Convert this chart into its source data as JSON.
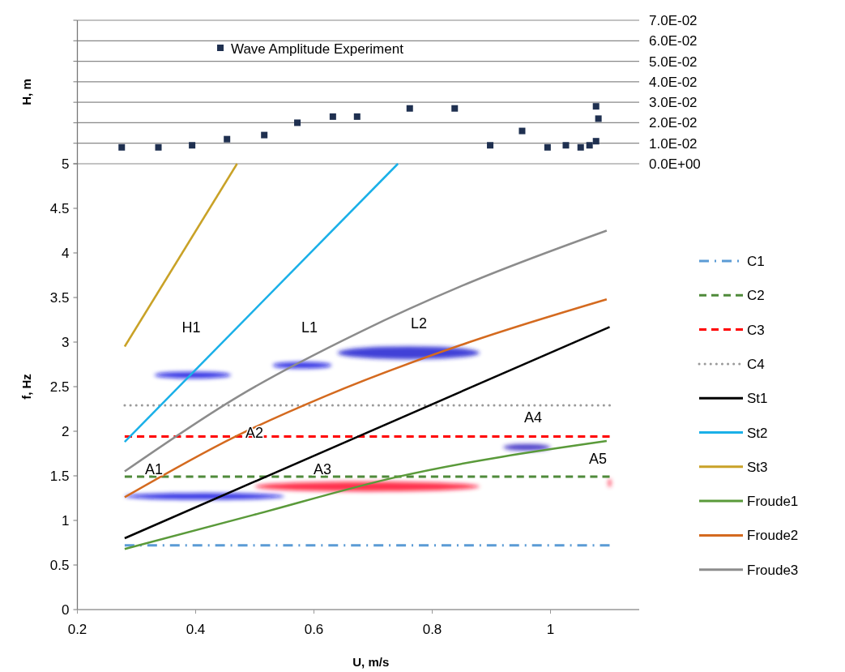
{
  "chart_data": [
    {
      "type": "scatter",
      "ylabel": "H, m",
      "xlim": [
        0.2,
        1.15
      ],
      "ylim": [
        0,
        0.07
      ],
      "yticks": [
        {
          "value": 0,
          "label": "0.0E+00"
        },
        {
          "value": 0.01,
          "label": "1.0E-02"
        },
        {
          "value": 0.02,
          "label": "2.0E-02"
        },
        {
          "value": 0.03,
          "label": "3.0E-02"
        },
        {
          "value": 0.04,
          "label": "4.0E-02"
        },
        {
          "value": 0.05,
          "label": "5.0E-02"
        },
        {
          "value": 0.06,
          "label": "6.0E-02"
        },
        {
          "value": 0.07,
          "label": "7.0E-02"
        }
      ],
      "tick_labels": "y",
      "grid": "y",
      "legend": "top",
      "marker": "square",
      "series": [
        {
          "name": "Wave Amplitude Experiment",
          "color": "#1f3050",
          "x": [
            0.275,
            0.337,
            0.394,
            0.453,
            0.516,
            0.572,
            0.632,
            0.673,
            0.762,
            0.838,
            0.898,
            0.952,
            0.995,
            1.026,
            1.051,
            1.066,
            1.077,
            1.077,
            1.081
          ],
          "values": [
            0.008,
            0.008,
            0.009,
            0.012,
            0.014,
            0.02,
            0.023,
            0.023,
            0.027,
            0.027,
            0.009,
            0.016,
            0.008,
            0.009,
            0.008,
            0.009,
            0.011,
            0.028,
            0.022
          ]
        }
      ]
    },
    {
      "type": "line",
      "xlabel": "U, m/s",
      "ylabel": "f, Hz",
      "xlim": [
        0.2,
        1.15
      ],
      "ylim": [
        0,
        5
      ],
      "xticks": [
        0.2,
        0.4,
        0.6,
        0.8,
        1
      ],
      "yticks": [
        0,
        0.5,
        1,
        1.5,
        2,
        2.5,
        3,
        3.5,
        4,
        4.5,
        5
      ],
      "legend": "right",
      "series": [
        {
          "name": "C1",
          "color": "#5b9bd5",
          "line_style": "dashdot",
          "x": [
            0.28,
            1.1
          ],
          "values": [
            0.72,
            0.72
          ]
        },
        {
          "name": "C2",
          "color": "#4f8a3a",
          "line_style": "dashed",
          "x": [
            0.28,
            1.1
          ],
          "values": [
            1.49,
            1.49
          ]
        },
        {
          "name": "C3",
          "color": "#ff0000",
          "line_style": "dashed",
          "x": [
            0.28,
            1.1
          ],
          "values": [
            1.94,
            1.94
          ]
        },
        {
          "name": "C4",
          "color": "#9a9a9a",
          "line_style": "dotted",
          "x": [
            0.28,
            1.1
          ],
          "values": [
            2.29,
            2.29
          ]
        },
        {
          "name": "St1",
          "color": "#000000",
          "line_style": "solid",
          "x": [
            0.28,
            1.1
          ],
          "values": [
            0.8,
            3.17
          ]
        },
        {
          "name": "St2",
          "color": "#1ab0e8",
          "line_style": "solid",
          "x": [
            0.28,
            0.742
          ],
          "values": [
            1.88,
            5
          ]
        },
        {
          "name": "St3",
          "color": "#c9a227",
          "line_style": "solid",
          "x": [
            0.28,
            0.47
          ],
          "values": [
            2.95,
            5
          ]
        },
        {
          "name": "Froude1",
          "color": "#5a9a3a",
          "line_style": "solid",
          "x": [
            0.28,
            0.497,
            0.742,
            1.095
          ],
          "values": [
            0.68,
            1.06,
            1.49,
            1.89
          ]
        },
        {
          "name": "Froude2",
          "color": "#d46a1f",
          "line_style": "solid",
          "x": [
            0.28,
            0.467,
            0.618,
            0.863,
            1.095
          ],
          "values": [
            1.26,
            1.94,
            2.39,
            3.0,
            3.48
          ]
        },
        {
          "name": "Froude3",
          "color": "#8c8c8c",
          "line_style": "solid",
          "x": [
            0.28,
            0.472,
            0.68,
            0.85,
            1.095
          ],
          "values": [
            1.55,
            2.39,
            3.12,
            3.63,
            4.25
          ]
        }
      ],
      "annotations": [
        "H1",
        "L1",
        "L2",
        "A1",
        "A2",
        "A3",
        "A4",
        "A5"
      ]
    }
  ]
}
